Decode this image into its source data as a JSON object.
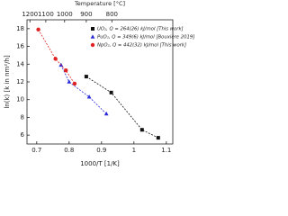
{
  "chart_data": {
    "type": "scatter",
    "xlabel": "1000/T [1/K]",
    "ylabel": "ln(k) [k in nm²/h]",
    "x2label": "Temperature [°C]",
    "xlim": [
      0.67,
      1.12
    ],
    "xticks": [
      0.7,
      0.8,
      0.9,
      1.0,
      1.1
    ],
    "ylim": [
      5,
      19
    ],
    "yticks": [
      6,
      8,
      10,
      12,
      14,
      16,
      18
    ],
    "x2ticks": [
      {
        "value": 0.679,
        "label": "1200"
      },
      {
        "value": 0.728,
        "label": "1100"
      },
      {
        "value": 0.786,
        "label": "1000"
      },
      {
        "value": 0.853,
        "label": "900"
      },
      {
        "value": 0.932,
        "label": "800"
      }
    ],
    "legend": "upper right",
    "series": [
      {
        "name": "UO₂, Q = 264(26) kJ/mol [This work]",
        "color": "#111111",
        "marker": "square",
        "x": [
          0.853,
          0.93,
          1.025,
          1.075
        ],
        "values": [
          12.6,
          10.8,
          6.6,
          5.7
        ]
      },
      {
        "name": "PuO₂, Q = 349(6) kJ/mol [Bouxière 2019]",
        "color": "#2b2bd9",
        "marker": "triangle",
        "x": [
          0.775,
          0.8,
          0.862,
          0.915
        ],
        "values": [
          13.9,
          12.0,
          10.3,
          8.4
        ]
      },
      {
        "name": "NpO₂, Q = 442(32) kJ/mol [This work]",
        "color": "#e02222",
        "marker": "circle",
        "x": [
          0.705,
          0.758,
          0.79,
          0.817
        ],
        "values": [
          17.9,
          14.6,
          13.3,
          11.8
        ]
      }
    ]
  }
}
